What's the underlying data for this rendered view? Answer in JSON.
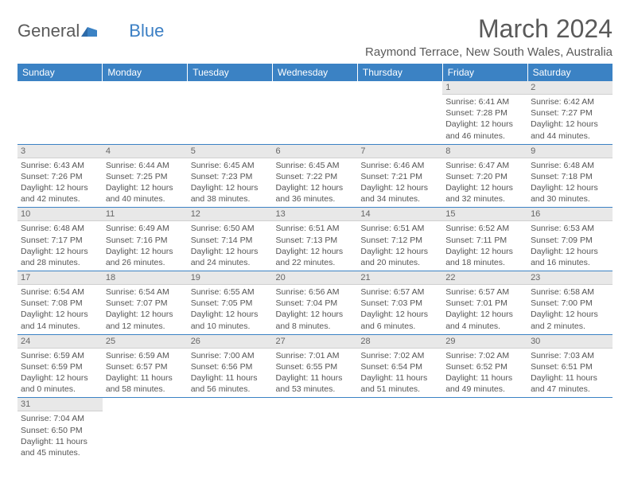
{
  "logo": {
    "text1": "General",
    "text2": "Blue"
  },
  "title": "March 2024",
  "location": "Raymond Terrace, New South Wales, Australia",
  "colors": {
    "header_bg": "#3b82c4",
    "header_fg": "#ffffff",
    "daynum_bg": "#e8e8e8",
    "row_border": "#3b82c4"
  },
  "weekdays": [
    "Sunday",
    "Monday",
    "Tuesday",
    "Wednesday",
    "Thursday",
    "Friday",
    "Saturday"
  ],
  "weeks": [
    [
      {
        "empty": true
      },
      {
        "empty": true
      },
      {
        "empty": true
      },
      {
        "empty": true
      },
      {
        "empty": true
      },
      {
        "day": "1",
        "sunrise": "Sunrise: 6:41 AM",
        "sunset": "Sunset: 7:28 PM",
        "daylight1": "Daylight: 12 hours",
        "daylight2": "and 46 minutes."
      },
      {
        "day": "2",
        "sunrise": "Sunrise: 6:42 AM",
        "sunset": "Sunset: 7:27 PM",
        "daylight1": "Daylight: 12 hours",
        "daylight2": "and 44 minutes."
      }
    ],
    [
      {
        "day": "3",
        "sunrise": "Sunrise: 6:43 AM",
        "sunset": "Sunset: 7:26 PM",
        "daylight1": "Daylight: 12 hours",
        "daylight2": "and 42 minutes."
      },
      {
        "day": "4",
        "sunrise": "Sunrise: 6:44 AM",
        "sunset": "Sunset: 7:25 PM",
        "daylight1": "Daylight: 12 hours",
        "daylight2": "and 40 minutes."
      },
      {
        "day": "5",
        "sunrise": "Sunrise: 6:45 AM",
        "sunset": "Sunset: 7:23 PM",
        "daylight1": "Daylight: 12 hours",
        "daylight2": "and 38 minutes."
      },
      {
        "day": "6",
        "sunrise": "Sunrise: 6:45 AM",
        "sunset": "Sunset: 7:22 PM",
        "daylight1": "Daylight: 12 hours",
        "daylight2": "and 36 minutes."
      },
      {
        "day": "7",
        "sunrise": "Sunrise: 6:46 AM",
        "sunset": "Sunset: 7:21 PM",
        "daylight1": "Daylight: 12 hours",
        "daylight2": "and 34 minutes."
      },
      {
        "day": "8",
        "sunrise": "Sunrise: 6:47 AM",
        "sunset": "Sunset: 7:20 PM",
        "daylight1": "Daylight: 12 hours",
        "daylight2": "and 32 minutes."
      },
      {
        "day": "9",
        "sunrise": "Sunrise: 6:48 AM",
        "sunset": "Sunset: 7:18 PM",
        "daylight1": "Daylight: 12 hours",
        "daylight2": "and 30 minutes."
      }
    ],
    [
      {
        "day": "10",
        "sunrise": "Sunrise: 6:48 AM",
        "sunset": "Sunset: 7:17 PM",
        "daylight1": "Daylight: 12 hours",
        "daylight2": "and 28 minutes."
      },
      {
        "day": "11",
        "sunrise": "Sunrise: 6:49 AM",
        "sunset": "Sunset: 7:16 PM",
        "daylight1": "Daylight: 12 hours",
        "daylight2": "and 26 minutes."
      },
      {
        "day": "12",
        "sunrise": "Sunrise: 6:50 AM",
        "sunset": "Sunset: 7:14 PM",
        "daylight1": "Daylight: 12 hours",
        "daylight2": "and 24 minutes."
      },
      {
        "day": "13",
        "sunrise": "Sunrise: 6:51 AM",
        "sunset": "Sunset: 7:13 PM",
        "daylight1": "Daylight: 12 hours",
        "daylight2": "and 22 minutes."
      },
      {
        "day": "14",
        "sunrise": "Sunrise: 6:51 AM",
        "sunset": "Sunset: 7:12 PM",
        "daylight1": "Daylight: 12 hours",
        "daylight2": "and 20 minutes."
      },
      {
        "day": "15",
        "sunrise": "Sunrise: 6:52 AM",
        "sunset": "Sunset: 7:11 PM",
        "daylight1": "Daylight: 12 hours",
        "daylight2": "and 18 minutes."
      },
      {
        "day": "16",
        "sunrise": "Sunrise: 6:53 AM",
        "sunset": "Sunset: 7:09 PM",
        "daylight1": "Daylight: 12 hours",
        "daylight2": "and 16 minutes."
      }
    ],
    [
      {
        "day": "17",
        "sunrise": "Sunrise: 6:54 AM",
        "sunset": "Sunset: 7:08 PM",
        "daylight1": "Daylight: 12 hours",
        "daylight2": "and 14 minutes."
      },
      {
        "day": "18",
        "sunrise": "Sunrise: 6:54 AM",
        "sunset": "Sunset: 7:07 PM",
        "daylight1": "Daylight: 12 hours",
        "daylight2": "and 12 minutes."
      },
      {
        "day": "19",
        "sunrise": "Sunrise: 6:55 AM",
        "sunset": "Sunset: 7:05 PM",
        "daylight1": "Daylight: 12 hours",
        "daylight2": "and 10 minutes."
      },
      {
        "day": "20",
        "sunrise": "Sunrise: 6:56 AM",
        "sunset": "Sunset: 7:04 PM",
        "daylight1": "Daylight: 12 hours",
        "daylight2": "and 8 minutes."
      },
      {
        "day": "21",
        "sunrise": "Sunrise: 6:57 AM",
        "sunset": "Sunset: 7:03 PM",
        "daylight1": "Daylight: 12 hours",
        "daylight2": "and 6 minutes."
      },
      {
        "day": "22",
        "sunrise": "Sunrise: 6:57 AM",
        "sunset": "Sunset: 7:01 PM",
        "daylight1": "Daylight: 12 hours",
        "daylight2": "and 4 minutes."
      },
      {
        "day": "23",
        "sunrise": "Sunrise: 6:58 AM",
        "sunset": "Sunset: 7:00 PM",
        "daylight1": "Daylight: 12 hours",
        "daylight2": "and 2 minutes."
      }
    ],
    [
      {
        "day": "24",
        "sunrise": "Sunrise: 6:59 AM",
        "sunset": "Sunset: 6:59 PM",
        "daylight1": "Daylight: 12 hours",
        "daylight2": "and 0 minutes."
      },
      {
        "day": "25",
        "sunrise": "Sunrise: 6:59 AM",
        "sunset": "Sunset: 6:57 PM",
        "daylight1": "Daylight: 11 hours",
        "daylight2": "and 58 minutes."
      },
      {
        "day": "26",
        "sunrise": "Sunrise: 7:00 AM",
        "sunset": "Sunset: 6:56 PM",
        "daylight1": "Daylight: 11 hours",
        "daylight2": "and 56 minutes."
      },
      {
        "day": "27",
        "sunrise": "Sunrise: 7:01 AM",
        "sunset": "Sunset: 6:55 PM",
        "daylight1": "Daylight: 11 hours",
        "daylight2": "and 53 minutes."
      },
      {
        "day": "28",
        "sunrise": "Sunrise: 7:02 AM",
        "sunset": "Sunset: 6:54 PM",
        "daylight1": "Daylight: 11 hours",
        "daylight2": "and 51 minutes."
      },
      {
        "day": "29",
        "sunrise": "Sunrise: 7:02 AM",
        "sunset": "Sunset: 6:52 PM",
        "daylight1": "Daylight: 11 hours",
        "daylight2": "and 49 minutes."
      },
      {
        "day": "30",
        "sunrise": "Sunrise: 7:03 AM",
        "sunset": "Sunset: 6:51 PM",
        "daylight1": "Daylight: 11 hours",
        "daylight2": "and 47 minutes."
      }
    ],
    [
      {
        "day": "31",
        "sunrise": "Sunrise: 7:04 AM",
        "sunset": "Sunset: 6:50 PM",
        "daylight1": "Daylight: 11 hours",
        "daylight2": "and 45 minutes."
      },
      {
        "empty": true
      },
      {
        "empty": true
      },
      {
        "empty": true
      },
      {
        "empty": true
      },
      {
        "empty": true
      },
      {
        "empty": true
      }
    ]
  ]
}
